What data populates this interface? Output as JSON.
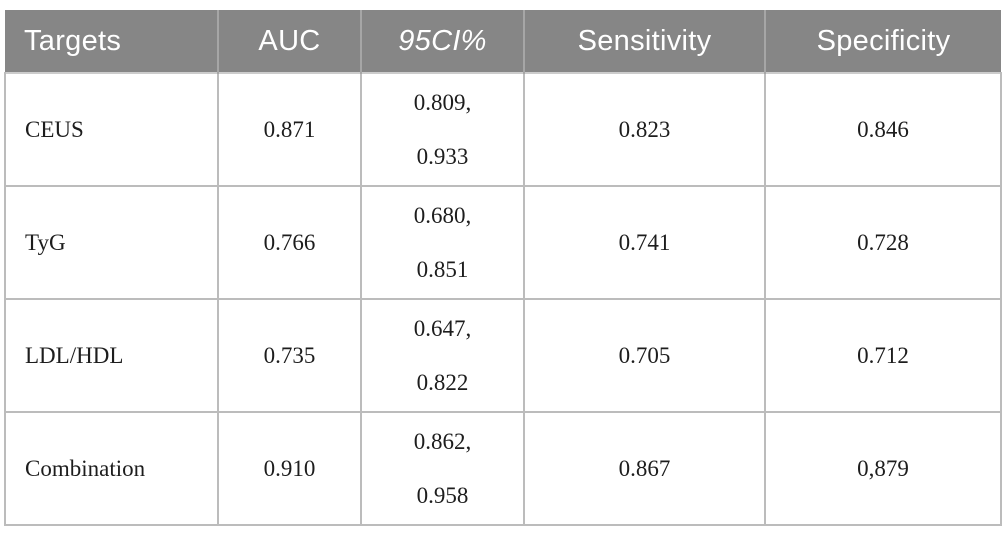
{
  "colors": {
    "header_bg": "#868686",
    "header_text": "#ffffff",
    "body_text": "#1d1d1d",
    "grid_border": "#bcbcbc",
    "page_bg": "#ffffff"
  },
  "table": {
    "headers": [
      {
        "label": "Targets"
      },
      {
        "label": "AUC"
      },
      {
        "label": "95CI%"
      },
      {
        "label": "Sensitivity"
      },
      {
        "label": "Specificity"
      }
    ],
    "rows": [
      {
        "targets": "CEUS",
        "auc": "0.871",
        "ci": [
          "0.809,",
          "0.933"
        ],
        "sensitivity": "0.823",
        "specificity": "0.846"
      },
      {
        "targets": "TyG",
        "auc": "0.766",
        "ci": [
          "0.680,",
          "0.851"
        ],
        "sensitivity": "0.741",
        "specificity": "0.728"
      },
      {
        "targets": "LDL/HDL",
        "auc": "0.735",
        "ci": [
          "0.647,",
          "0.822"
        ],
        "sensitivity": "0.705",
        "specificity": "0.712"
      },
      {
        "targets": "Combination",
        "auc": "0.910",
        "ci": [
          "0.862,",
          "0.958"
        ],
        "sensitivity": "0.867",
        "specificity": "0,879"
      }
    ]
  },
  "chart_data": {
    "type": "table",
    "title": "",
    "columns": [
      "Targets",
      "AUC",
      "95CI%",
      "Sensitivity",
      "Specificity"
    ],
    "rows": [
      [
        "CEUS",
        "0.871",
        "0.809, 0.933",
        "0.823",
        "0.846"
      ],
      [
        "TyG",
        "0.766",
        "0.680, 0.851",
        "0.741",
        "0.728"
      ],
      [
        "LDL/HDL",
        "0.735",
        "0.647, 0.822",
        "0.705",
        "0.712"
      ],
      [
        "Combination",
        "0.910",
        "0.862, 0.958",
        "0.867",
        "0,879"
      ]
    ]
  }
}
